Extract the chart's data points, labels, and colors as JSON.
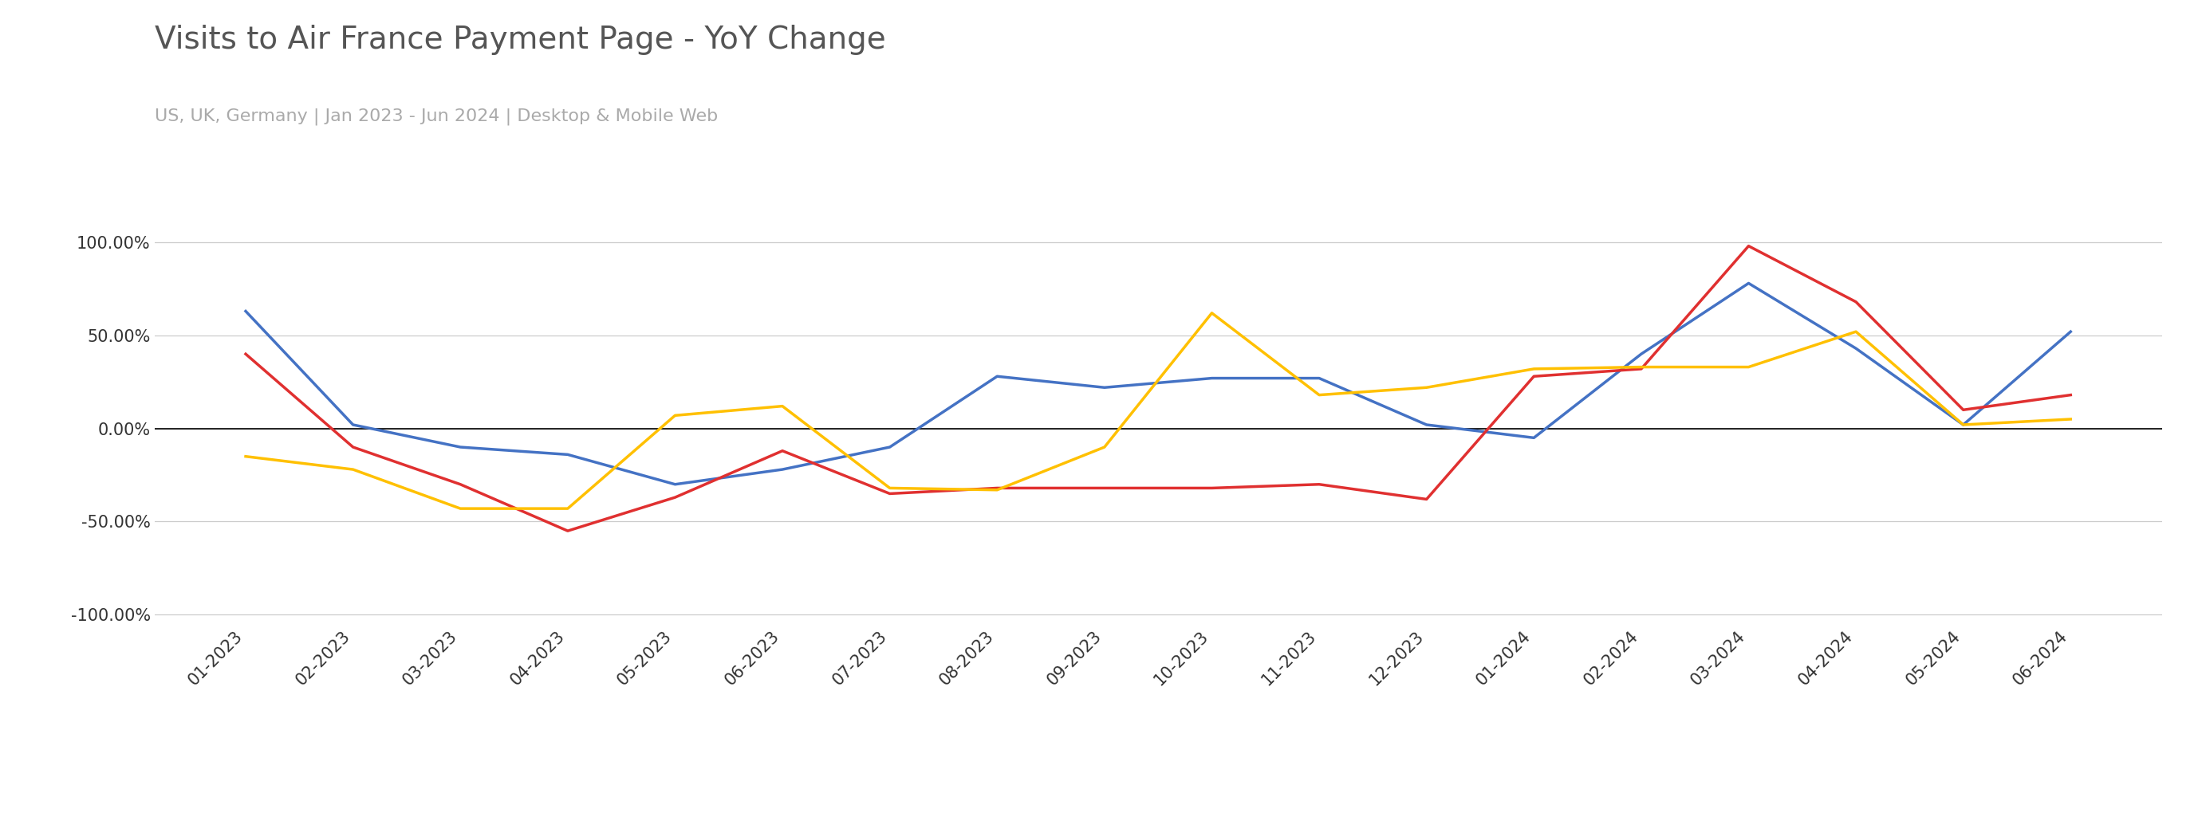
{
  "title": "Visits to Air France Payment Page - YoY Change",
  "subtitle": "US, UK, Germany | Jan 2023 - Jun 2024 | Desktop & Mobile Web",
  "x_labels": [
    "01-2023",
    "02-2023",
    "03-2023",
    "04-2023",
    "05-2023",
    "06-2023",
    "07-2023",
    "08-2023",
    "09-2023",
    "10-2023",
    "11-2023",
    "12-2023",
    "01-2024",
    "02-2024",
    "03-2024",
    "04-2024",
    "05-2024",
    "06-2024"
  ],
  "US": [
    0.63,
    0.02,
    -0.1,
    -0.14,
    -0.3,
    -0.22,
    -0.1,
    0.28,
    0.22,
    0.27,
    0.27,
    0.02,
    -0.05,
    0.4,
    0.78,
    0.43,
    0.02,
    0.52
  ],
  "UK": [
    0.4,
    -0.1,
    -0.3,
    -0.55,
    -0.37,
    -0.12,
    -0.35,
    -0.32,
    -0.32,
    -0.32,
    -0.3,
    -0.38,
    0.28,
    0.32,
    0.98,
    0.68,
    0.1,
    0.18
  ],
  "Germany": [
    -0.15,
    -0.22,
    -0.43,
    -0.43,
    0.07,
    0.12,
    -0.32,
    -0.33,
    -0.1,
    0.62,
    0.18,
    0.22,
    0.32,
    0.33,
    0.33,
    0.52,
    0.02,
    0.05
  ],
  "US_color": "#4472C4",
  "UK_color": "#E03030",
  "Germany_color": "#FFC000",
  "background_color": "#ffffff",
  "ylim": [
    -1.05,
    1.05
  ],
  "yticks": [
    -1.0,
    -0.5,
    0.0,
    0.5,
    1.0
  ],
  "ytick_labels": [
    "-100.00%",
    "-50.00%",
    "0.00%",
    "50.00%",
    "100.00%"
  ],
  "title_fontsize": 28,
  "subtitle_fontsize": 16,
  "tick_fontsize": 15,
  "legend_fontsize": 16,
  "line_width": 2.5
}
